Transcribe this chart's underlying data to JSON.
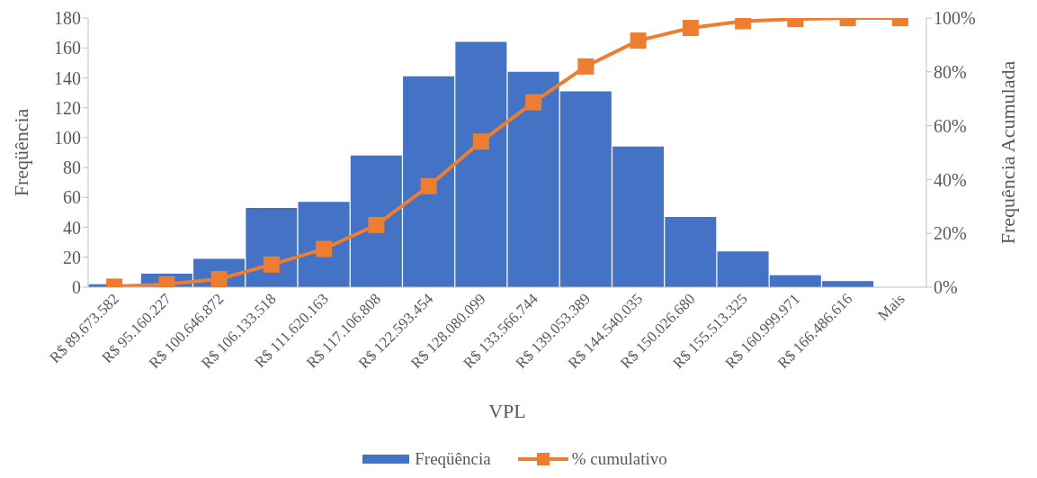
{
  "chart_data": {
    "type": "bar",
    "xlabel": "VPL",
    "ylabel": "Freqüência",
    "y2label": "Frequência Acumulada",
    "categories": [
      "R$ 89.673.582",
      "R$ 95.160.227",
      "R$ 100.646.872",
      "R$ 106.133.518",
      "R$ 111.620.163",
      "R$ 117.106.808",
      "R$ 122.593.454",
      "R$ 128.080.099",
      "R$ 133.566.744",
      "R$ 139.053.389",
      "R$ 144.540.035",
      "R$ 150.026.680",
      "R$ 155.513.325",
      "R$ 160.999.971",
      "R$ 166.486.616",
      "Mais"
    ],
    "series": [
      {
        "name": "Freqüência",
        "color": "#4472c4",
        "values": [
          2,
          9,
          19,
          53,
          57,
          88,
          141,
          164,
          144,
          131,
          94,
          47,
          24,
          8,
          4,
          0
        ]
      },
      {
        "name": "% cumulativo",
        "type": "line",
        "axis": "y2",
        "color": "#ed7d31",
        "marker": "square",
        "values": [
          0.2,
          1.1,
          3.0,
          8.4,
          14.2,
          23.1,
          37.5,
          54.1,
          68.7,
          82.0,
          91.6,
          96.3,
          98.8,
          99.6,
          100,
          100
        ]
      }
    ],
    "ylim": [
      0,
      180
    ],
    "yticks": [
      0,
      20,
      40,
      60,
      80,
      100,
      120,
      140,
      160,
      180
    ],
    "y2lim": [
      0,
      100
    ],
    "y2ticks": [
      {
        "value": 0,
        "label": "0%"
      },
      {
        "value": 20,
        "label": "20%"
      },
      {
        "value": 40,
        "label": "40%"
      },
      {
        "value": 60,
        "label": "60%"
      },
      {
        "value": 80,
        "label": "80%"
      },
      {
        "value": 100,
        "label": "100%"
      }
    ],
    "grid": false,
    "legend": "bottom"
  }
}
